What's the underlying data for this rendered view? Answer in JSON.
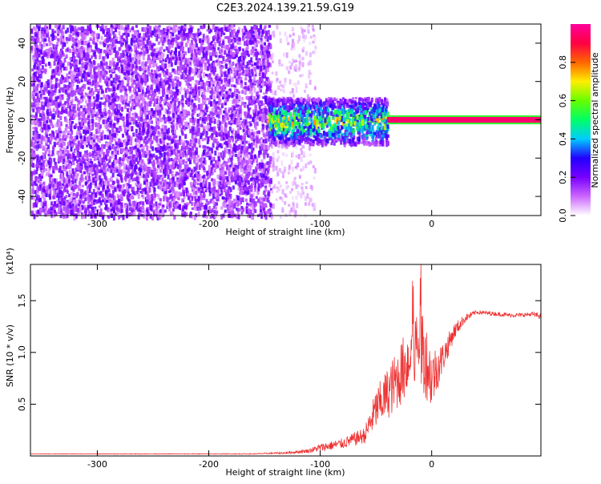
{
  "title": "C2E3.2024.139.21.59.G19",
  "chart_data": [
    {
      "type": "heatmap",
      "xlabel": "Height of straight line (km)",
      "ylabel": "Frequency (Hz)",
      "xlim": [
        -360,
        98
      ],
      "ylim": [
        -50,
        50
      ],
      "x_ticks": [
        -300,
        -200,
        -100,
        0
      ],
      "y_ticks": [
        -40,
        -20,
        0,
        20,
        40
      ],
      "colorbar": {
        "label": "Normalized spectral amplitude",
        "range": [
          0,
          1
        ],
        "ticks": [
          0.0,
          0.2,
          0.4,
          0.6,
          0.8
        ],
        "colors": [
          "#ffffff",
          "#cc66ff",
          "#7700ff",
          "#2200ff",
          "#00ccff",
          "#00ff66",
          "#66ff00",
          "#ffee00",
          "#ff6600",
          "#ff0044",
          "#ff0099"
        ]
      },
      "regions": [
        {
          "x_range": [
            -360,
            -145
          ],
          "y_range": [
            -50,
            50
          ],
          "amplitude": 0.15,
          "note": "broadband noise"
        },
        {
          "x_range": [
            -145,
            -105
          ],
          "y_range": [
            -50,
            50
          ],
          "amplitude": 0.05
        },
        {
          "x_range": [
            -148,
            -40
          ],
          "y_range": [
            -12,
            12
          ],
          "amplitude": 0.45
        },
        {
          "x_range": [
            -40,
            98
          ],
          "y_range": [
            -1.5,
            1.5
          ],
          "amplitude": 0.95,
          "note": "carrier line near 0 Hz"
        }
      ]
    },
    {
      "type": "line",
      "xlabel": "Height of straight line (km)",
      "ylabel": "SNR (10 * v/v)",
      "y_multiplier": "(x10⁴)",
      "xlim": [
        -360,
        98
      ],
      "ylim": [
        0,
        1.85
      ],
      "x_ticks": [
        -300,
        -200,
        -100,
        0
      ],
      "y_ticks": [
        0.5,
        1.0,
        1.5
      ],
      "y_tick_labels": [
        "0.5",
        "1.0",
        "1.5"
      ],
      "series": [
        {
          "color": "#ee3333",
          "x": [
            -360,
            -300,
            -250,
            -200,
            -160,
            -130,
            -110,
            -100,
            -80,
            -60,
            -50,
            -40,
            -30,
            -20,
            -10,
            0,
            10,
            20,
            30,
            40,
            50,
            60,
            70,
            80,
            90,
            98
          ],
          "y": [
            0.02,
            0.02,
            0.02,
            0.02,
            0.02,
            0.03,
            0.05,
            0.08,
            0.12,
            0.2,
            0.45,
            0.6,
            0.75,
            0.95,
            1.1,
            0.75,
            0.95,
            1.2,
            1.33,
            1.39,
            1.38,
            1.37,
            1.36,
            1.36,
            1.37,
            1.35
          ],
          "noise": [
            0.002,
            0.003,
            0.003,
            0.003,
            0.004,
            0.01,
            0.02,
            0.04,
            0.05,
            0.08,
            0.2,
            0.25,
            0.3,
            0.35,
            0.45,
            0.3,
            0.15,
            0.08,
            0.04,
            0.02,
            0.02,
            0.02,
            0.02,
            0.02,
            0.02,
            0.03
          ]
        }
      ]
    }
  ]
}
